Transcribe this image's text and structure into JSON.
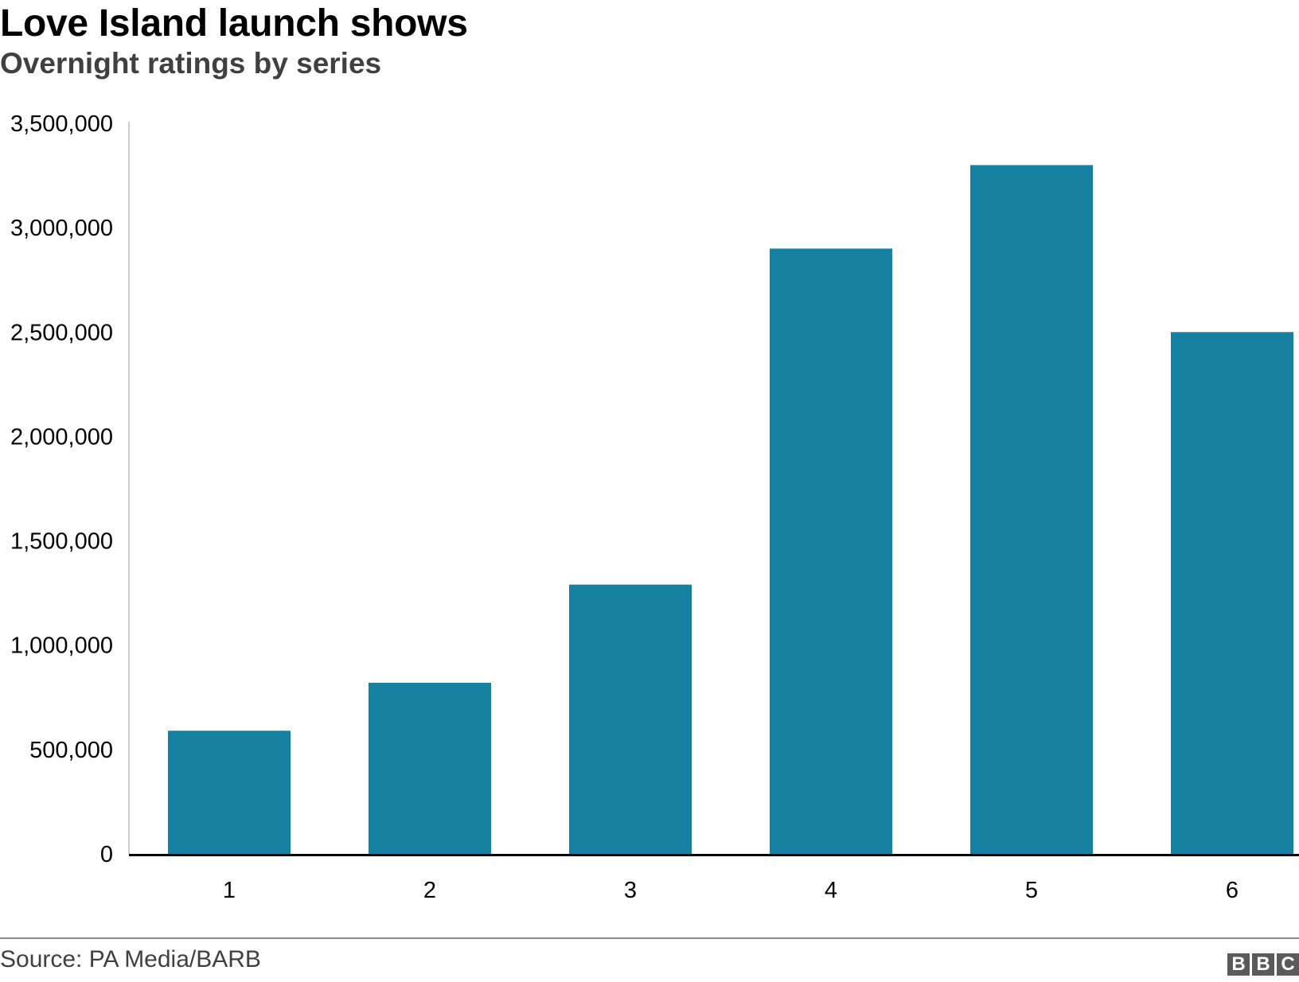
{
  "header": {
    "title": "Love Island launch shows",
    "subtitle": "Overnight ratings by series"
  },
  "footer": {
    "source": "Source: PA Media/BARB",
    "logo_letters": [
      "B",
      "B",
      "C"
    ]
  },
  "colors": {
    "bar": "#1580a0",
    "axis": "#000000",
    "y_axis_line": "#cccccc",
    "tick_text": "#000000"
  },
  "chart_data": {
    "type": "bar",
    "title": "Love Island launch shows",
    "subtitle": "Overnight ratings by series",
    "categories": [
      "1",
      "2",
      "3",
      "4",
      "5",
      "6"
    ],
    "values": [
      590000,
      820000,
      1290000,
      2900000,
      3300000,
      2500000
    ],
    "ylim": [
      0,
      3500000
    ],
    "yticks": [
      0,
      500000,
      1000000,
      1500000,
      2000000,
      2500000,
      3000000,
      3500000
    ],
    "ytick_labels": [
      "0",
      "500,000",
      "1,000,000",
      "1,500,000",
      "2,000,000",
      "2,500,000",
      "3,000,000",
      "3,500,000"
    ],
    "xlabel": "",
    "ylabel": "",
    "grid": false,
    "legend": false
  }
}
